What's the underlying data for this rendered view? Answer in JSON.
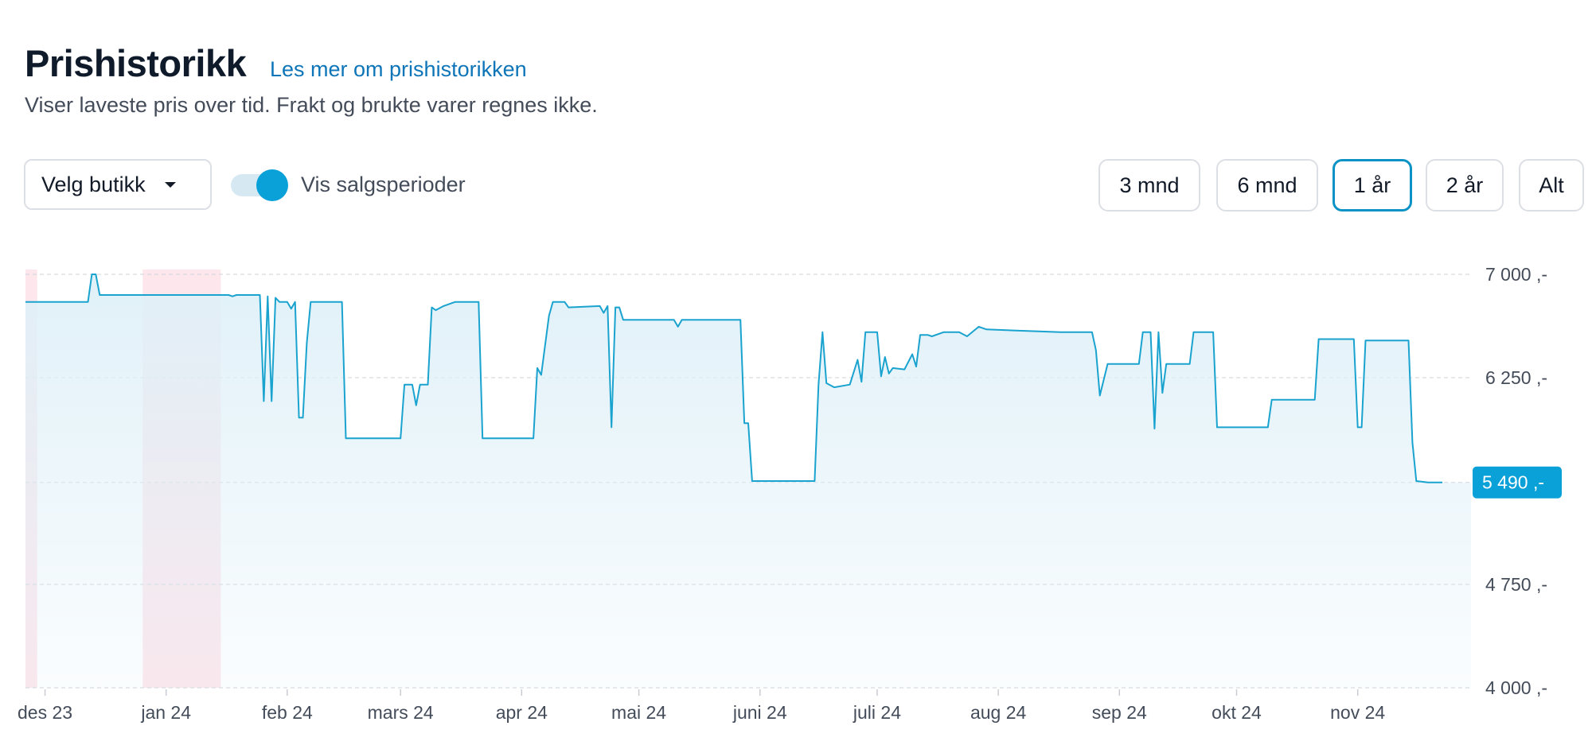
{
  "header": {
    "title": "Prishistorikk",
    "link": "Les mer om prishistorikken",
    "subtitle": "Viser laveste pris over tid. Frakt og brukte varer regnes ikke."
  },
  "controls": {
    "store_select": "Velg butikk",
    "toggle_label": "Vis salgsperioder",
    "toggle_on": true,
    "ranges": [
      "3 mnd",
      "6 mnd",
      "1 år",
      "2 år",
      "Alt"
    ],
    "active_range": "1 år"
  },
  "colors": {
    "line": "#1aa3cf",
    "fill": "#dff0f8",
    "sale_period": "#fde3ea",
    "badge": "#0aa0d8",
    "accent": "#0a93c4"
  },
  "chart_data": {
    "type": "area",
    "title": "",
    "xlabel": "",
    "ylabel": "",
    "ylim": [
      4000,
      7000
    ],
    "y_ticks": [
      7000,
      6250,
      5490,
      4750,
      4000
    ],
    "y_tick_labels": [
      "7 000 ,-",
      "6 250 ,-",
      "5 490 ,-",
      "4 750 ,-",
      "4 000 ,-"
    ],
    "current_price": 5490,
    "current_price_label": "5 490 ,-",
    "x_ticks": [
      "2023-12-01",
      "2024-01-01",
      "2024-02-01",
      "2024-03-01",
      "2024-04-01",
      "2024-05-01",
      "2024-06-01",
      "2024-07-01",
      "2024-08-01",
      "2024-09-01",
      "2024-10-01",
      "2024-11-01"
    ],
    "x_tick_labels": [
      "des 23",
      "jan 24",
      "feb 24",
      "mars 24",
      "apr 24",
      "mai 24",
      "juni 24",
      "juli 24",
      "aug 24",
      "sep 24",
      "okt 24",
      "nov 24"
    ],
    "x_range": [
      "2023-11-26",
      "2024-11-30"
    ],
    "sale_periods": [
      [
        "2023-11-26",
        "2023-11-29"
      ],
      [
        "2023-12-26",
        "2024-01-15"
      ]
    ],
    "series": [
      {
        "points": [
          [
            "2023-11-26",
            6800
          ],
          [
            "2023-12-12",
            6800
          ],
          [
            "2023-12-13",
            7000
          ],
          [
            "2023-12-14",
            7000
          ],
          [
            "2023-12-15",
            6850
          ],
          [
            "2024-01-17",
            6850
          ],
          [
            "2024-01-18",
            6840
          ],
          [
            "2024-01-19",
            6850
          ],
          [
            "2024-01-25",
            6850
          ],
          [
            "2024-01-26",
            6080
          ],
          [
            "2024-01-27",
            6840
          ],
          [
            "2024-01-28",
            6080
          ],
          [
            "2024-01-29",
            6830
          ],
          [
            "2024-01-30",
            6800
          ],
          [
            "2024-02-01",
            6800
          ],
          [
            "2024-02-02",
            6750
          ],
          [
            "2024-02-03",
            6800
          ],
          [
            "2024-02-04",
            5960
          ],
          [
            "2024-02-05",
            5960
          ],
          [
            "2024-02-06",
            6500
          ],
          [
            "2024-02-07",
            6800
          ],
          [
            "2024-02-15",
            6800
          ],
          [
            "2024-02-16",
            5810
          ],
          [
            "2024-03-01",
            5810
          ],
          [
            "2024-03-02",
            6200
          ],
          [
            "2024-03-04",
            6200
          ],
          [
            "2024-03-05",
            6050
          ],
          [
            "2024-03-06",
            6200
          ],
          [
            "2024-03-08",
            6200
          ],
          [
            "2024-03-09",
            6760
          ],
          [
            "2024-03-10",
            6740
          ],
          [
            "2024-03-12",
            6770
          ],
          [
            "2024-03-15",
            6800
          ],
          [
            "2024-03-21",
            6800
          ],
          [
            "2024-03-22",
            5810
          ],
          [
            "2024-04-04",
            5810
          ],
          [
            "2024-04-05",
            6320
          ],
          [
            "2024-04-06",
            6270
          ],
          [
            "2024-04-08",
            6700
          ],
          [
            "2024-04-09",
            6800
          ],
          [
            "2024-04-12",
            6800
          ],
          [
            "2024-04-13",
            6760
          ],
          [
            "2024-04-21",
            6770
          ],
          [
            "2024-04-22",
            6720
          ],
          [
            "2024-04-23",
            6770
          ],
          [
            "2024-04-24",
            5890
          ],
          [
            "2024-04-25",
            6760
          ],
          [
            "2024-04-26",
            6760
          ],
          [
            "2024-04-27",
            6670
          ],
          [
            "2024-05-10",
            6670
          ],
          [
            "2024-05-11",
            6620
          ],
          [
            "2024-05-12",
            6670
          ],
          [
            "2024-05-27",
            6670
          ],
          [
            "2024-05-28",
            5920
          ],
          [
            "2024-05-29",
            5920
          ],
          [
            "2024-05-30",
            5500
          ],
          [
            "2024-06-15",
            5500
          ],
          [
            "2024-06-16",
            6200
          ],
          [
            "2024-06-17",
            6580
          ],
          [
            "2024-06-18",
            6210
          ],
          [
            "2024-06-20",
            6180
          ],
          [
            "2024-06-24",
            6200
          ],
          [
            "2024-06-26",
            6380
          ],
          [
            "2024-06-27",
            6220
          ],
          [
            "2024-06-28",
            6580
          ],
          [
            "2024-07-01",
            6580
          ],
          [
            "2024-07-02",
            6260
          ],
          [
            "2024-07-03",
            6400
          ],
          [
            "2024-07-04",
            6280
          ],
          [
            "2024-07-05",
            6320
          ],
          [
            "2024-07-08",
            6310
          ],
          [
            "2024-07-10",
            6420
          ],
          [
            "2024-07-11",
            6330
          ],
          [
            "2024-07-12",
            6560
          ],
          [
            "2024-07-14",
            6560
          ],
          [
            "2024-07-15",
            6550
          ],
          [
            "2024-07-18",
            6580
          ],
          [
            "2024-07-22",
            6580
          ],
          [
            "2024-07-24",
            6550
          ],
          [
            "2024-07-27",
            6620
          ],
          [
            "2024-07-29",
            6600
          ],
          [
            "2024-08-17",
            6580
          ],
          [
            "2024-08-25",
            6580
          ],
          [
            "2024-08-26",
            6450
          ],
          [
            "2024-08-27",
            6120
          ],
          [
            "2024-08-29",
            6350
          ],
          [
            "2024-09-03",
            6350
          ],
          [
            "2024-09-06",
            6350
          ],
          [
            "2024-09-07",
            6580
          ],
          [
            "2024-09-09",
            6580
          ],
          [
            "2024-09-10",
            5880
          ],
          [
            "2024-09-11",
            6580
          ],
          [
            "2024-09-12",
            6140
          ],
          [
            "2024-09-13",
            6350
          ],
          [
            "2024-09-19",
            6350
          ],
          [
            "2024-09-20",
            6580
          ],
          [
            "2024-09-25",
            6580
          ],
          [
            "2024-09-26",
            5890
          ],
          [
            "2024-10-09",
            5890
          ],
          [
            "2024-10-10",
            6090
          ],
          [
            "2024-10-21",
            6090
          ],
          [
            "2024-10-22",
            6530
          ],
          [
            "2024-10-31",
            6530
          ],
          [
            "2024-11-01",
            5890
          ],
          [
            "2024-11-02",
            5890
          ],
          [
            "2024-11-03",
            6520
          ],
          [
            "2024-11-14",
            6520
          ],
          [
            "2024-11-15",
            5780
          ],
          [
            "2024-11-16",
            5500
          ],
          [
            "2024-11-19",
            5490
          ]
        ]
      }
    ]
  }
}
